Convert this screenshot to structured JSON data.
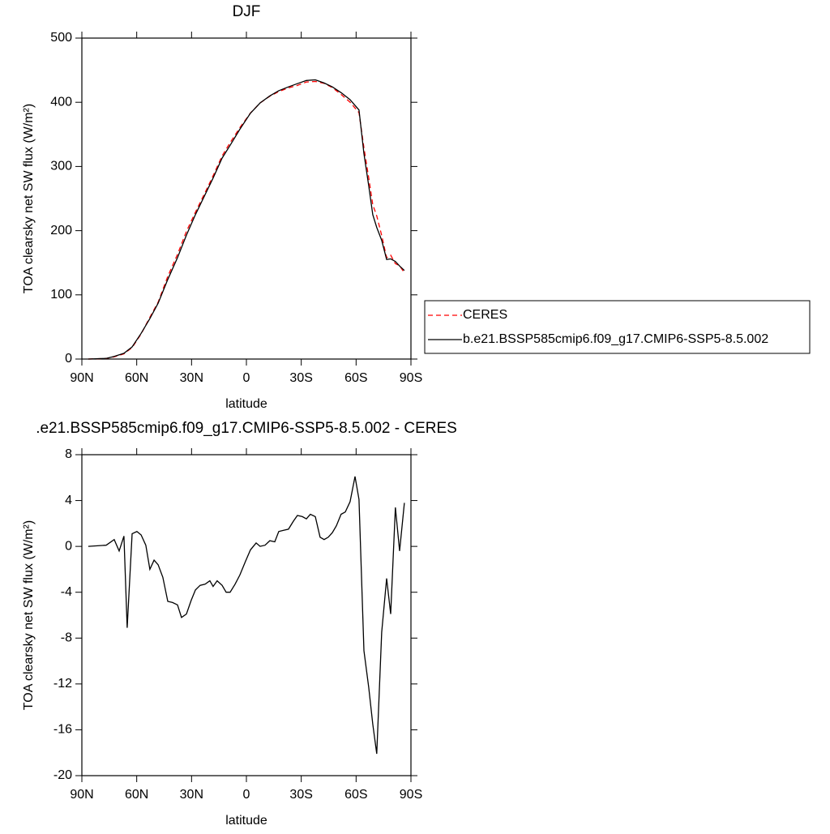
{
  "chart_data": [
    {
      "type": "line",
      "title": "DJF",
      "x_label": "latitude",
      "y_label": "TOA clearsky net SW flux (W/m²)",
      "x": [
        86.5,
        76.7,
        72.3,
        67,
        62.5,
        57.6,
        52.8,
        48.3,
        43,
        37.7,
        32.8,
        27.9,
        22.6,
        18.2,
        13.3,
        8.9,
        3.6,
        -2.2,
        -7.5,
        -12.8,
        -17.7,
        -23,
        -27.9,
        -32.8,
        -37.7,
        -42.5,
        -47,
        -51.8,
        -56.7,
        -61.6,
        -64.3,
        -66.9,
        -69.1,
        -71.3,
        -74,
        -76.7,
        -78.9,
        -81.5,
        -83.8,
        -86.4
      ],
      "series": [
        {
          "name": "CERES",
          "color": "#ff0000",
          "dash": true,
          "values": [
            0,
            0.9,
            3.4,
            8.1,
            17.9,
            39,
            65,
            88.6,
            128.8,
            163.1,
            198.9,
            228.8,
            259.3,
            285.5,
            316.4,
            337,
            360.5,
            383.3,
            399,
            409.5,
            416.7,
            422.5,
            426.3,
            431.6,
            432.4,
            429.4,
            422.8,
            412.2,
            400.1,
            383.9,
            329.1,
            282.3,
            240.5,
            223.1,
            192.5,
            157.8,
            161.9,
            148.6,
            145.4,
            134.2
          ]
        },
        {
          "name": "b.e21.BSSP585cmip6.f09_g17.CMIP6-SSP5-8.5.002",
          "color": "#000000",
          "dash": false,
          "values": [
            0,
            1,
            4,
            9,
            19,
            40,
            63,
            87,
            124,
            158,
            193,
            225,
            256,
            282,
            313,
            333,
            358,
            383,
            399,
            410,
            418,
            424,
            429,
            434,
            435,
            430,
            424,
            415,
            404,
            388,
            320,
            270,
            225,
            205,
            185,
            155,
            156,
            152,
            145,
            138
          ]
        }
      ],
      "xlim": [
        90,
        -90
      ],
      "xticks": [
        {
          "value": 90,
          "label": "90N"
        },
        {
          "value": 60,
          "label": "60N"
        },
        {
          "value": 30,
          "label": "30N"
        },
        0,
        {
          "value": -30,
          "label": "30S"
        },
        {
          "value": -60,
          "label": "60S"
        },
        {
          "value": -90,
          "label": "90S"
        }
      ],
      "ylim": [
        0,
        500
      ],
      "yticks": [
        0,
        100,
        200,
        300,
        400,
        500
      ]
    },
    {
      "type": "line",
      "title": ".e21.BSSP585cmip6.f09_g17.CMIP6-SSP5-8.5.002 - CERES",
      "x_label": "latitude",
      "y_label": "TOA clearsky net SW flux (W/m²)",
      "x": [
        86.5,
        76.7,
        72.3,
        69.6,
        67,
        65.2,
        62.5,
        59.9,
        57.6,
        55,
        52.8,
        50.5,
        48.3,
        45.7,
        43,
        40.4,
        37.7,
        35.5,
        32.8,
        30.2,
        27.9,
        25.3,
        22.6,
        20,
        18.2,
        16,
        13.3,
        11.1,
        8.9,
        6.2,
        3.6,
        0.5,
        -2.2,
        -5.3,
        -7.5,
        -10.2,
        -12.8,
        -15.5,
        -17.7,
        -20.4,
        -23,
        -25.7,
        -27.9,
        -30.6,
        -32.8,
        -35,
        -37.7,
        -40.3,
        -42.5,
        -44.8,
        -47,
        -49.2,
        -51.8,
        -54.1,
        -56.7,
        -59.4,
        -61.6,
        -64.3,
        -66.9,
        -69.1,
        -71.3,
        -74,
        -76.7,
        -78.9,
        -81.5,
        -83.8,
        -86.4
      ],
      "color": "#000000",
      "values": [
        0,
        0.1,
        0.6,
        -0.4,
        0.9,
        -7.1,
        1.1,
        1.3,
        1.0,
        0.1,
        -2.0,
        -1.2,
        -1.6,
        -2.7,
        -4.8,
        -4.9,
        -5.1,
        -6.2,
        -5.9,
        -4.7,
        -3.8,
        -3.4,
        -3.3,
        -3.0,
        -3.5,
        -3.0,
        -3.4,
        -4.0,
        -4.0,
        -3.3,
        -2.5,
        -1.3,
        -0.3,
        0.3,
        0.0,
        0.1,
        0.5,
        0.4,
        1.3,
        1.4,
        1.5,
        2.2,
        2.7,
        2.6,
        2.4,
        2.8,
        2.6,
        0.8,
        0.6,
        0.8,
        1.2,
        1.8,
        2.8,
        3.0,
        3.9,
        6.1,
        4.1,
        -9.1,
        -12.3,
        -15.5,
        -18.1,
        -7.5,
        -2.8,
        -5.9,
        3.4,
        -0.4,
        3.8
      ],
      "xlim": [
        90,
        -90
      ],
      "xticks": [
        {
          "value": 90,
          "label": "90N"
        },
        {
          "value": 60,
          "label": "60N"
        },
        {
          "value": 30,
          "label": "30N"
        },
        0,
        {
          "value": -30,
          "label": "30S"
        },
        {
          "value": -60,
          "label": "60S"
        },
        {
          "value": -90,
          "label": "90S"
        }
      ],
      "ylim": [
        -20,
        8
      ],
      "yticks": [
        8,
        4,
        0,
        -4,
        -8,
        -12,
        -16,
        -20
      ]
    }
  ]
}
